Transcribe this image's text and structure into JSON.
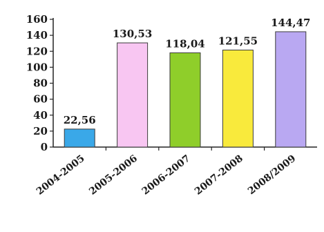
{
  "chart_data": {
    "type": "bar",
    "title": "",
    "xlabel": "",
    "ylabel": "",
    "categories": [
      "2004-2005",
      "2005-2006",
      "2006-2007",
      "2007-2008",
      "2008/2009"
    ],
    "values": [
      22.56,
      130.53,
      118.04,
      121.55,
      144.47
    ],
    "value_labels": [
      "22,56",
      "130,53",
      "118,04",
      "121,55",
      "144,47"
    ],
    "colors": [
      "#3aa8e8",
      "#f8c6f2",
      "#8fce2a",
      "#f9ea3c",
      "#b9a8f2"
    ],
    "ylim": [
      0,
      160
    ],
    "yticks": [
      0,
      20,
      40,
      60,
      80,
      100,
      120,
      140,
      160
    ],
    "grid": false,
    "legend": "none"
  }
}
